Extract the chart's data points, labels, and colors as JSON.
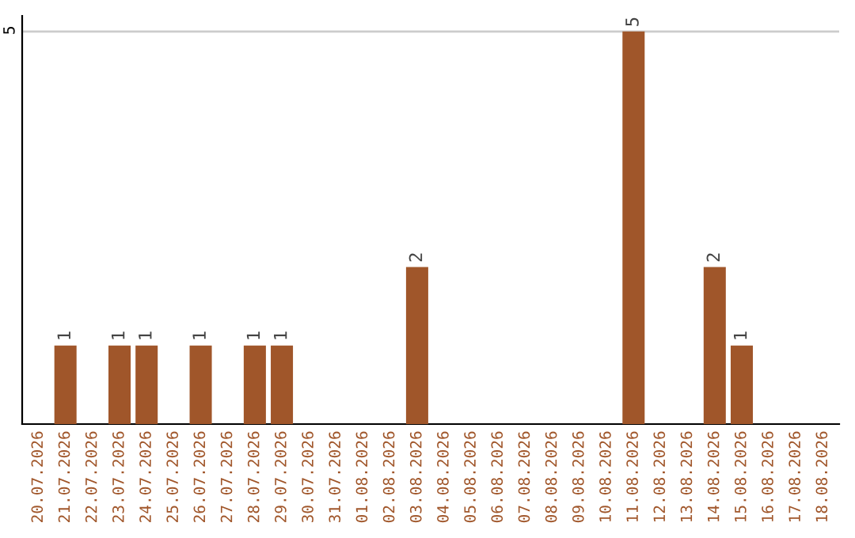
{
  "chart_data": {
    "type": "bar",
    "categories": [
      "20.07.2026",
      "21.07.2026",
      "22.07.2026",
      "23.07.2026",
      "24.07.2026",
      "25.07.2026",
      "26.07.2026",
      "27.07.2026",
      "28.07.2026",
      "29.07.2026",
      "30.07.2026",
      "31.07.2026",
      "01.08.2026",
      "02.08.2026",
      "03.08.2026",
      "04.08.2026",
      "05.08.2026",
      "06.08.2026",
      "07.08.2026",
      "08.08.2026",
      "09.08.2026",
      "10.08.2026",
      "11.08.2026",
      "12.08.2026",
      "13.08.2026",
      "14.08.2026",
      "15.08.2026",
      "16.08.2026",
      "17.08.2026",
      "18.08.2026"
    ],
    "values": [
      0,
      1,
      0,
      1,
      1,
      0,
      1,
      0,
      1,
      1,
      0,
      0,
      0,
      0,
      2,
      0,
      0,
      0,
      0,
      0,
      0,
      0,
      5,
      0,
      0,
      2,
      1,
      0,
      0,
      0
    ],
    "value_labels": [
      null,
      "1",
      null,
      "1",
      "1",
      null,
      "1",
      null,
      "1",
      "1",
      null,
      null,
      null,
      null,
      "2",
      null,
      null,
      null,
      null,
      null,
      null,
      null,
      "5",
      null,
      null,
      "2",
      "1",
      null,
      null,
      null
    ],
    "color": "#a0562a",
    "ylim": [
      0,
      5.2
    ],
    "yticks": [
      5
    ],
    "grid": "y"
  }
}
